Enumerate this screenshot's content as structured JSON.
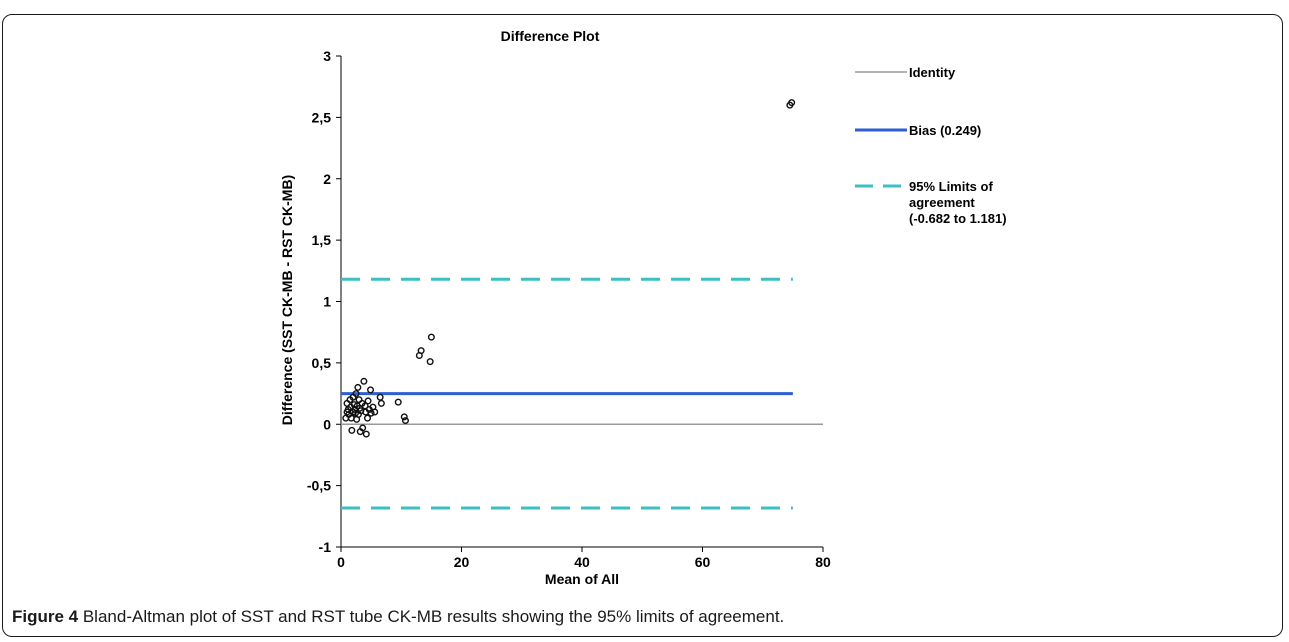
{
  "chart_data": {
    "type": "scatter",
    "title": "Difference Plot",
    "xlabel": "Mean of All",
    "ylabel": "Difference (SST CK-MB - RST  CK-MB)",
    "xlim": [
      0,
      80
    ],
    "ylim": [
      -1,
      3
    ],
    "x_ticks": [
      "0",
      "20",
      "40",
      "60",
      "80"
    ],
    "y_ticks": [
      "-1",
      "-0,5",
      "0",
      "0,5",
      "1",
      "1,5",
      "2",
      "2,5",
      "3"
    ],
    "x_tick_values": [
      0,
      20,
      40,
      60,
      80
    ],
    "y_tick_values": [
      -1,
      -0.5,
      0,
      0.5,
      1,
      1.5,
      2,
      2.5,
      3
    ],
    "lines": [
      {
        "name": "Identity",
        "y": 0,
        "color": "#9a9a9a",
        "style": "solid"
      },
      {
        "name": "Bias (0.249)",
        "y": 0.249,
        "color": "#2c5fd6",
        "style": "solid"
      },
      {
        "name": "95% Limits of agreement (-0.682 to 1.181)",
        "y_values": [
          1.181,
          -0.682
        ],
        "color": "#3cbfc0",
        "style": "dashed"
      }
    ],
    "legend": {
      "position": "right",
      "entries": [
        {
          "label": "Identity",
          "lines": [
            "Identity"
          ],
          "color": "#9a9a9a",
          "style": "solid"
        },
        {
          "label": "Bias (0.249)",
          "lines": [
            "Bias (0.249)"
          ],
          "color": "#2c5fd6",
          "style": "solid"
        },
        {
          "label": "95% Limits of agreement (-0.682 to 1.181)",
          "lines": [
            "95% Limits of",
            "agreement",
            "(-0.682 to 1.181)"
          ],
          "color": "#3cbfc0",
          "style": "dashed"
        }
      ]
    },
    "points": [
      {
        "x": 0.8,
        "y": 0.05
      },
      {
        "x": 1.0,
        "y": 0.1
      },
      {
        "x": 1.0,
        "y": 0.17
      },
      {
        "x": 1.2,
        "y": 0.12
      },
      {
        "x": 1.3,
        "y": 0.08
      },
      {
        "x": 1.5,
        "y": 0.2
      },
      {
        "x": 1.6,
        "y": 0.14
      },
      {
        "x": 1.7,
        "y": 0.05
      },
      {
        "x": 1.8,
        "y": -0.05
      },
      {
        "x": 2.0,
        "y": 0.1
      },
      {
        "x": 2.0,
        "y": 0.22
      },
      {
        "x": 2.2,
        "y": 0.16
      },
      {
        "x": 2.3,
        "y": 0.12
      },
      {
        "x": 2.4,
        "y": 0.09
      },
      {
        "x": 2.5,
        "y": 0.25
      },
      {
        "x": 2.6,
        "y": 0.04
      },
      {
        "x": 2.7,
        "y": 0.15
      },
      {
        "x": 2.8,
        "y": 0.3
      },
      {
        "x": 2.9,
        "y": 0.08
      },
      {
        "x": 3.0,
        "y": 0.2
      },
      {
        "x": 3.1,
        "y": 0.13
      },
      {
        "x": 3.2,
        "y": -0.06
      },
      {
        "x": 3.3,
        "y": 0.11
      },
      {
        "x": 3.5,
        "y": 0.17
      },
      {
        "x": 3.6,
        "y": -0.03
      },
      {
        "x": 3.8,
        "y": 0.35
      },
      {
        "x": 4.0,
        "y": 0.15
      },
      {
        "x": 4.1,
        "y": 0.1
      },
      {
        "x": 4.2,
        "y": -0.08
      },
      {
        "x": 4.4,
        "y": 0.05
      },
      {
        "x": 4.5,
        "y": 0.19
      },
      {
        "x": 4.7,
        "y": 0.12
      },
      {
        "x": 4.9,
        "y": 0.28
      },
      {
        "x": 5.0,
        "y": 0.09
      },
      {
        "x": 5.3,
        "y": 0.14
      },
      {
        "x": 5.6,
        "y": 0.1
      },
      {
        "x": 6.5,
        "y": 0.22
      },
      {
        "x": 6.7,
        "y": 0.17
      },
      {
        "x": 9.5,
        "y": 0.18
      },
      {
        "x": 10.5,
        "y": 0.06
      },
      {
        "x": 10.7,
        "y": 0.03
      },
      {
        "x": 13.0,
        "y": 0.56
      },
      {
        "x": 13.3,
        "y": 0.6
      },
      {
        "x": 14.8,
        "y": 0.51
      },
      {
        "x": 15.0,
        "y": 0.71
      },
      {
        "x": 74.5,
        "y": 2.6
      },
      {
        "x": 74.8,
        "y": 2.62
      }
    ]
  },
  "caption": {
    "label": "Figure 4",
    "text": " Bland-Altman plot of SST and RST tube CK-MB results showing the 95% limits of agreement."
  }
}
